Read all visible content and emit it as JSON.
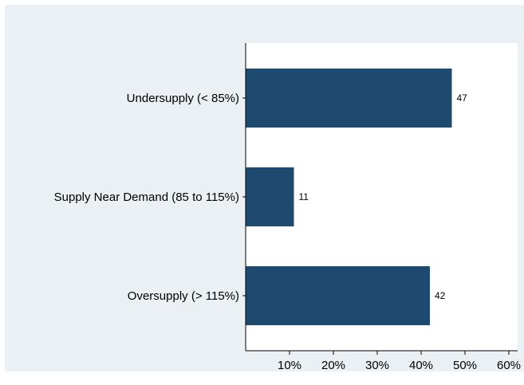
{
  "chart_data": {
    "type": "bar",
    "orientation": "horizontal",
    "categories": [
      "Undersupply (< 85%)",
      "Supply Near Demand (85 to 115%)",
      "Oversupply (> 115%)"
    ],
    "values": [
      47,
      11,
      42
    ],
    "data_labels": [
      "47",
      "11",
      "42"
    ],
    "xlim": [
      0,
      62
    ],
    "x_ticks": [
      10,
      20,
      30,
      40,
      50,
      60
    ],
    "x_tick_labels": [
      "10%",
      "20%",
      "30%",
      "40%",
      "50%",
      "60%"
    ],
    "title": "",
    "xlabel": "",
    "ylabel": "",
    "grid": false,
    "colors": {
      "bar": "#1f4a70",
      "plot_bg": "#ffffff",
      "outer_bg": "#eaf0f3"
    }
  }
}
